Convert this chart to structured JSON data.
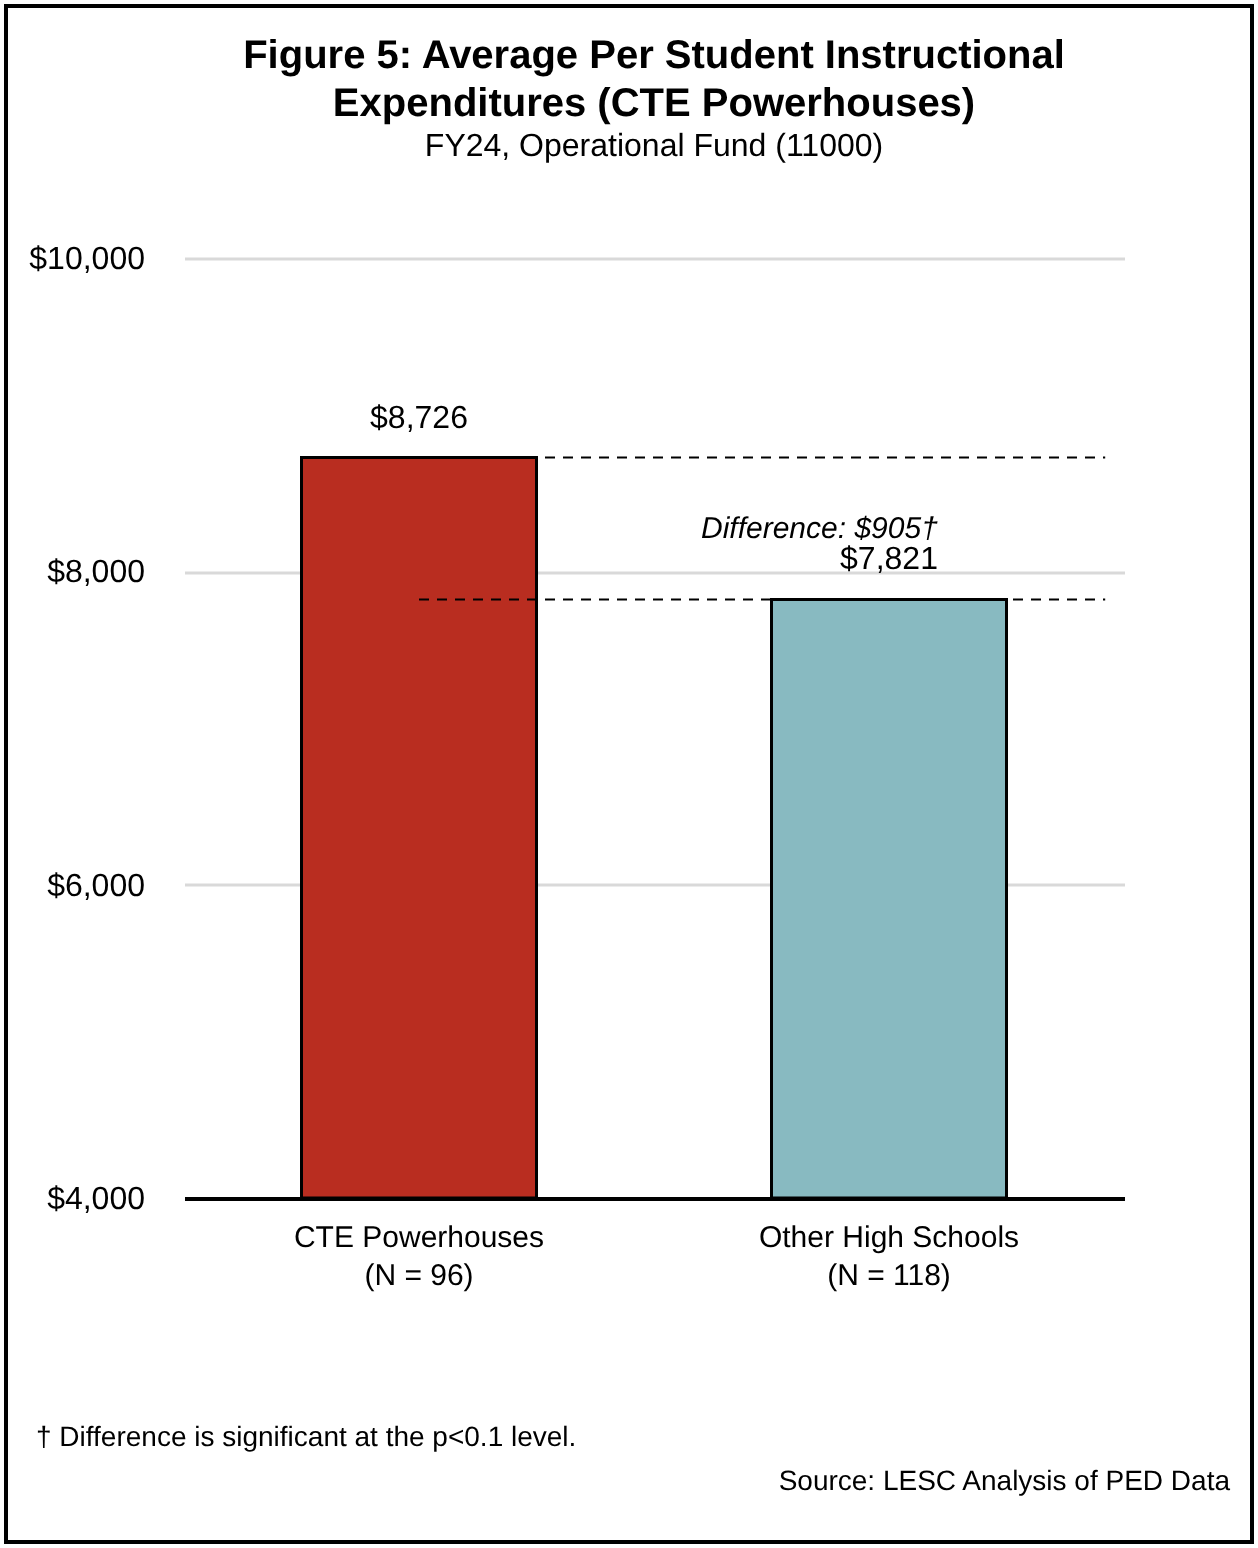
{
  "chart_data": {
    "type": "bar",
    "title": "Figure 5: Average Per Student Instructional Expenditures (CTE Powerhouses)",
    "subtitle": "FY24, Operational Fund (11000)",
    "categories": [
      "CTE Powerhouses\n(N = 96)",
      "Other High Schools\n(N = 118)"
    ],
    "values": [
      8726,
      7821
    ],
    "colors": [
      "#b92d20",
      "#88bac1"
    ],
    "value_labels": [
      "$8,726",
      "$7,821"
    ],
    "ylim": [
      4000,
      10000
    ],
    "yticks": [
      {
        "value": 4000,
        "label": "$4,000"
      },
      {
        "value": 6000,
        "label": "$6,000"
      },
      {
        "value": 8000,
        "label": "$8,000"
      },
      {
        "value": 10000,
        "label": "$10,000"
      }
    ],
    "grid": "y",
    "ref_lines": [
      {
        "axis": "y",
        "value": 8726,
        "line_style": "dashed"
      },
      {
        "axis": "y",
        "value": 7821,
        "line_style": "dashed"
      }
    ],
    "annotations": [
      "Difference: $905†",
      "† Difference is significant at the p<0.1 level.",
      "Source: LESC Analysis of PED Data"
    ]
  }
}
